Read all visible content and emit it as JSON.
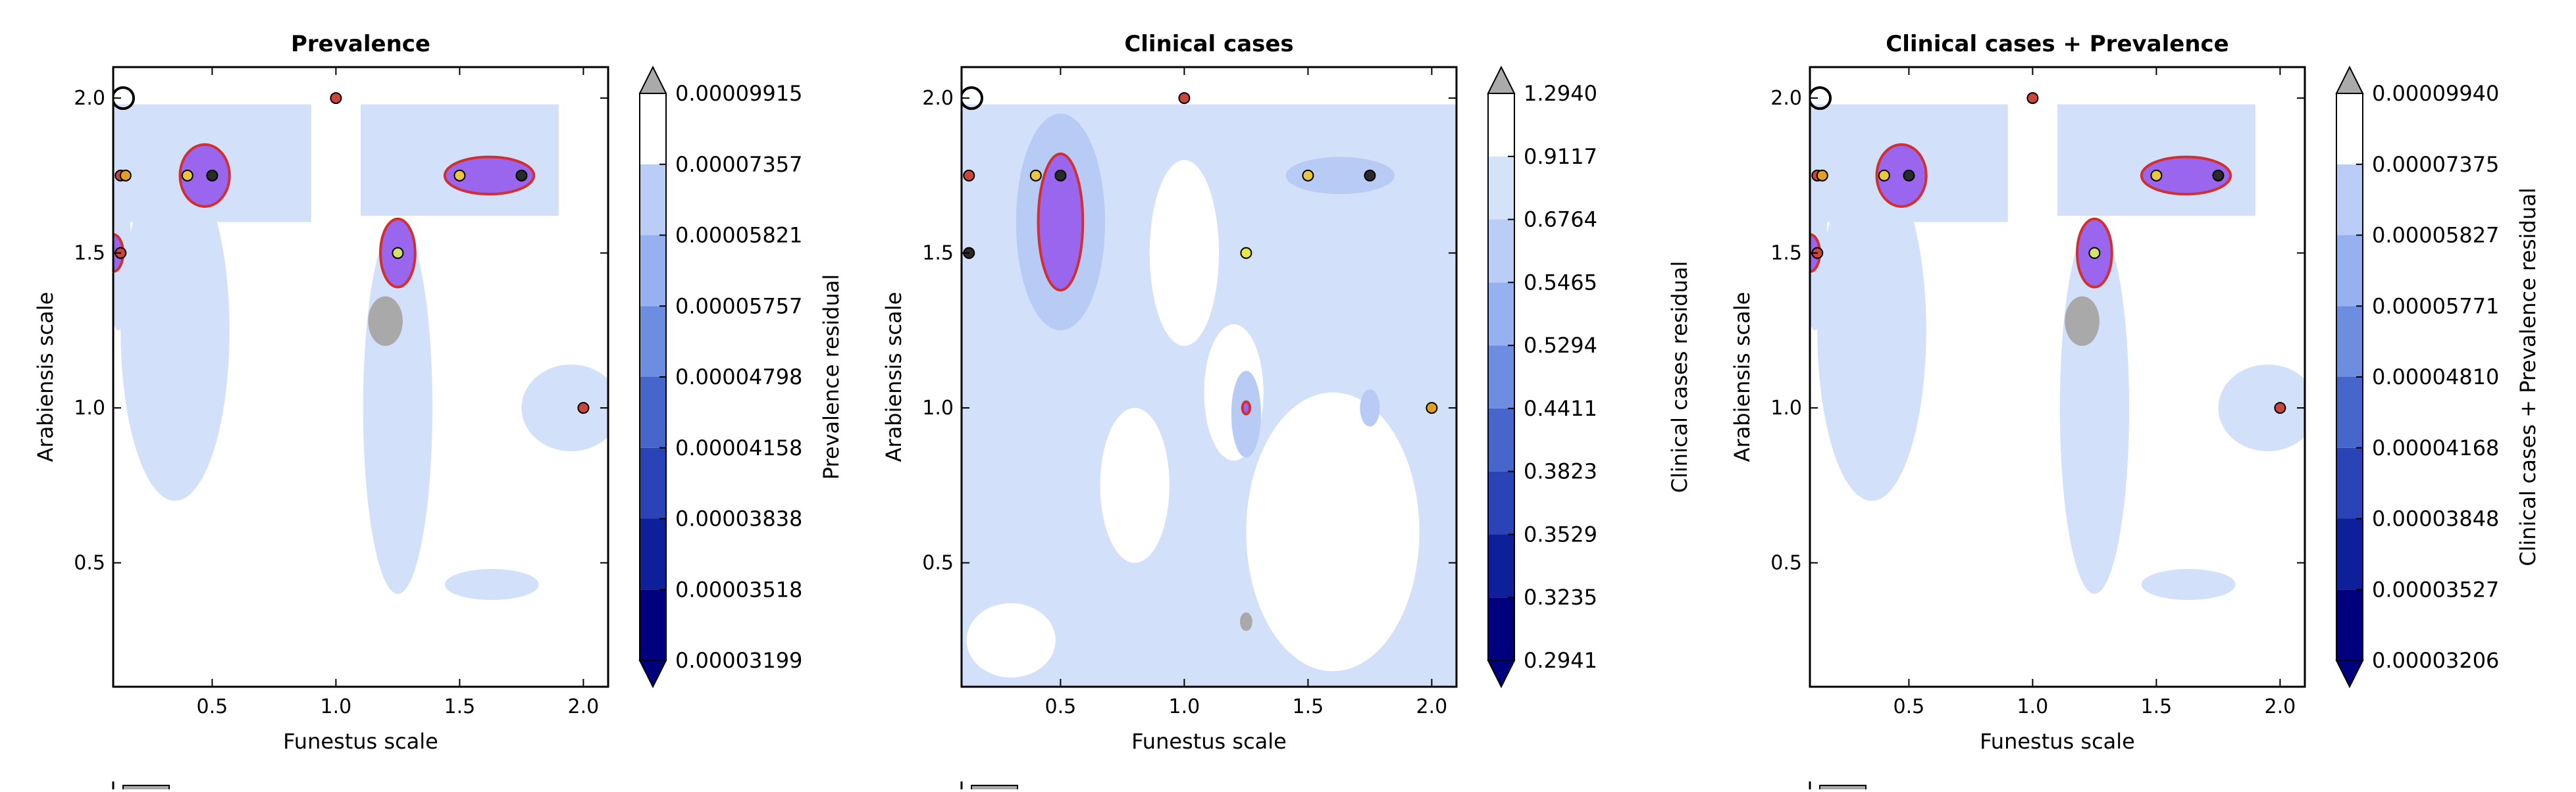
{
  "chart_data": [
    {
      "type": "contour",
      "title": "Prevalence",
      "xlabel": "Funestus scale",
      "ylabel": "Arabiensis scale",
      "xlim": [
        0.1,
        2.1
      ],
      "ylim": [
        0.1,
        2.1
      ],
      "xticks": [
        "0.5",
        "1.0",
        "1.5",
        "2.0"
      ],
      "yticks": [
        "0.5",
        "1.0",
        "1.5",
        "2.0"
      ],
      "colorbar_label": "Prevalence residual",
      "colorbar_ticks": [
        "0.00003199",
        "0.00003518",
        "0.00003838",
        "0.00004158",
        "0.00004798",
        "0.00005757",
        "0.00005821",
        "0.00007357",
        "0.00009915"
      ],
      "points": [
        {
          "x": 0.13,
          "y": 1.75,
          "color": "#c8463c"
        },
        {
          "x": 0.15,
          "y": 1.75,
          "color": "#e0a020"
        },
        {
          "x": 0.4,
          "y": 1.75,
          "color": "#e8c640"
        },
        {
          "x": 0.5,
          "y": 1.75,
          "color": "#2a2a2a"
        },
        {
          "x": 0.13,
          "y": 1.5,
          "color": "#c8463c"
        },
        {
          "x": 1.0,
          "y": 2.0,
          "color": "#c8463c"
        },
        {
          "x": 1.25,
          "y": 1.5,
          "color": "#d4e070"
        },
        {
          "x": 1.5,
          "y": 1.75,
          "color": "#e8c640"
        },
        {
          "x": 1.75,
          "y": 1.75,
          "color": "#2a2a2a"
        },
        {
          "x": 2.0,
          "y": 1.0,
          "color": "#c8463c"
        }
      ]
    },
    {
      "type": "contour",
      "title": "Clinical cases",
      "xlabel": "Funestus scale",
      "ylabel": "Arabiensis scale",
      "xlim": [
        0.1,
        2.1
      ],
      "ylim": [
        0.1,
        2.1
      ],
      "xticks": [
        "0.5",
        "1.0",
        "1.5",
        "2.0"
      ],
      "yticks": [
        "0.5",
        "1.0",
        "1.5",
        "2.0"
      ],
      "colorbar_label": "Clinical cases residual",
      "colorbar_ticks": [
        "0.2941",
        "0.3235",
        "0.3529",
        "0.3823",
        "0.4411",
        "0.5294",
        "0.5465",
        "0.6764",
        "0.9117",
        "1.2940"
      ],
      "points": [
        {
          "x": 0.13,
          "y": 1.75,
          "color": "#c8463c"
        },
        {
          "x": 0.4,
          "y": 1.75,
          "color": "#e8c640"
        },
        {
          "x": 0.5,
          "y": 1.75,
          "color": "#2a2a2a"
        },
        {
          "x": 0.13,
          "y": 1.5,
          "color": "#2a2a2a"
        },
        {
          "x": 1.0,
          "y": 2.0,
          "color": "#c8463c"
        },
        {
          "x": 1.25,
          "y": 1.5,
          "color": "#e8e840"
        },
        {
          "x": 1.5,
          "y": 1.75,
          "color": "#e8c640"
        },
        {
          "x": 1.75,
          "y": 1.75,
          "color": "#2a2a2a"
        },
        {
          "x": 2.0,
          "y": 1.0,
          "color": "#e0a020"
        }
      ]
    },
    {
      "type": "contour",
      "title": "Clinical cases + Prevalence",
      "xlabel": "Funestus scale",
      "ylabel": "Arabiensis scale",
      "xlim": [
        0.1,
        2.1
      ],
      "ylim": [
        0.1,
        2.1
      ],
      "xticks": [
        "0.5",
        "1.0",
        "1.5",
        "2.0"
      ],
      "yticks": [
        "0.5",
        "1.0",
        "1.5",
        "2.0"
      ],
      "colorbar_label": "Clinical cases + Prevalence residual",
      "colorbar_ticks": [
        "0.00003206",
        "0.00003527",
        "0.00003848",
        "0.00004168",
        "0.00004810",
        "0.00005771",
        "0.00005827",
        "0.00007375",
        "0.00009940"
      ],
      "points": [
        {
          "x": 0.13,
          "y": 1.75,
          "color": "#c8463c"
        },
        {
          "x": 0.15,
          "y": 1.75,
          "color": "#e0a020"
        },
        {
          "x": 0.4,
          "y": 1.75,
          "color": "#e8c640"
        },
        {
          "x": 0.5,
          "y": 1.75,
          "color": "#2a2a2a"
        },
        {
          "x": 0.13,
          "y": 1.5,
          "color": "#c8463c"
        },
        {
          "x": 1.0,
          "y": 2.0,
          "color": "#c8463c"
        },
        {
          "x": 1.25,
          "y": 1.5,
          "color": "#d4e070"
        },
        {
          "x": 1.5,
          "y": 1.75,
          "color": "#e8c640"
        },
        {
          "x": 1.75,
          "y": 1.75,
          "color": "#2a2a2a"
        },
        {
          "x": 2.0,
          "y": 1.0,
          "color": "#c8463c"
        }
      ]
    }
  ],
  "colors": {
    "levels": [
      "#00007f",
      "#0e1f9a",
      "#2a44b8",
      "#4766cc",
      "#6d8ee0",
      "#95b1ef",
      "#b9cdf6",
      "#d4e2fa",
      "#ffffff"
    ],
    "over": "#aaaaaa",
    "over_region": "#a9a9a9",
    "highlight_fill": "#9b66ee",
    "highlight_edge": "#d03030",
    "base_fill": "#d3e0fa",
    "mid_fill": "#b7cbf4"
  }
}
